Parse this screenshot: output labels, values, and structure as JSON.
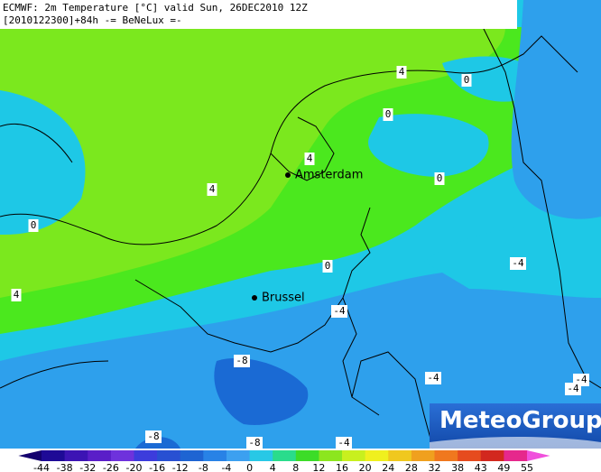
{
  "header": {
    "line1": "ECMWF: 2m Temperature [°C] valid Sun, 26DEC2010 12Z",
    "line2": "[2010122300]+84h -= BeNeLux =-"
  },
  "cities": [
    "Amsterdam",
    "Brussel"
  ],
  "contour_labels": [
    "4",
    "0",
    "0",
    "4",
    "4",
    "0",
    "0",
    "4",
    "0",
    "-4",
    "-4",
    "-8",
    "-4",
    "-4",
    "-4",
    "-8",
    "-8",
    "-4"
  ],
  "colorbar": {
    "labels": [
      "-44",
      "-38",
      "-32",
      "-26",
      "-20",
      "-16",
      "-12",
      "-8",
      "-4",
      "0",
      "4",
      "8",
      "12",
      "16",
      "20",
      "24",
      "28",
      "32",
      "38",
      "43",
      "49",
      "55"
    ],
    "colors": [
      "#14006e",
      "#1e0a96",
      "#3c14b4",
      "#5a1ec8",
      "#6e32dc",
      "#3c3cdc",
      "#2850d2",
      "#1e64d2",
      "#2882e6",
      "#3ca0f0",
      "#28c8e6",
      "#2adc8c",
      "#3cdc28",
      "#8ce61e",
      "#c8f01e",
      "#f0f01e",
      "#f0c81e",
      "#f0a01e",
      "#f0781e",
      "#e64b1e",
      "#d2281e",
      "#e6288c",
      "#f050dc"
    ]
  },
  "logo": "MeteoGroup"
}
